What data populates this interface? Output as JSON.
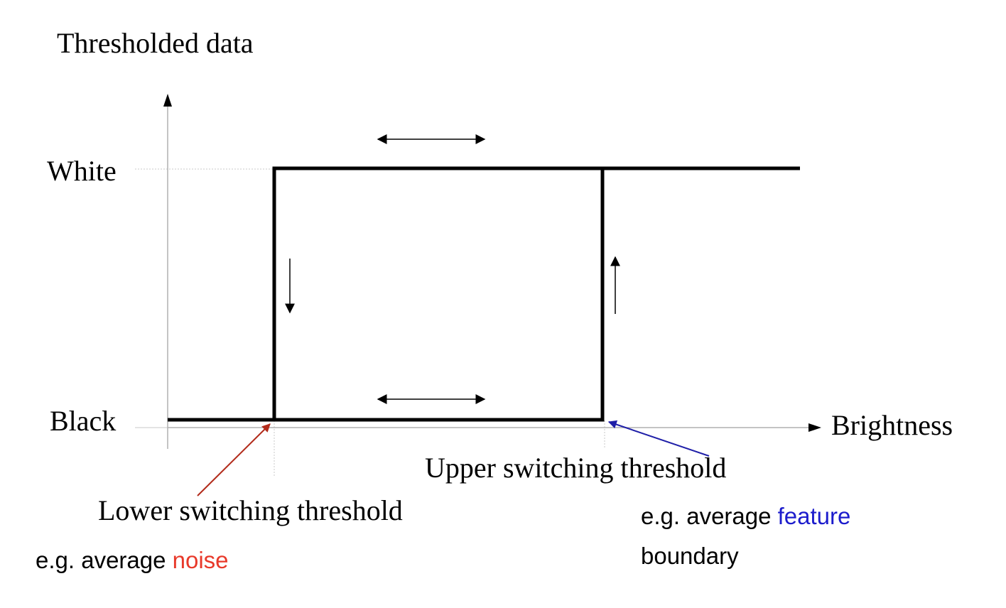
{
  "diagram": {
    "y_axis_label": "Thresholded data",
    "x_axis_label": "Brightness",
    "level_high": "White",
    "level_low": "Black",
    "upper_threshold_label": "Upper switching threshold",
    "lower_threshold_label": "Lower switching threshold",
    "lower_note": {
      "prefix": "e.g. average ",
      "highlight": "noise"
    },
    "upper_note": {
      "prefix": "e.g. average ",
      "highlight": "feature",
      "line2": "boundary"
    }
  },
  "colors": {
    "curve": "#000000",
    "axis": "#b0b0b0",
    "guide": "#c8c8c8",
    "lower_pointer": "#b22a1a",
    "upper_pointer": "#1f1fa8",
    "noise_text": "#e8392a",
    "feature_text": "#1c1ccc"
  }
}
